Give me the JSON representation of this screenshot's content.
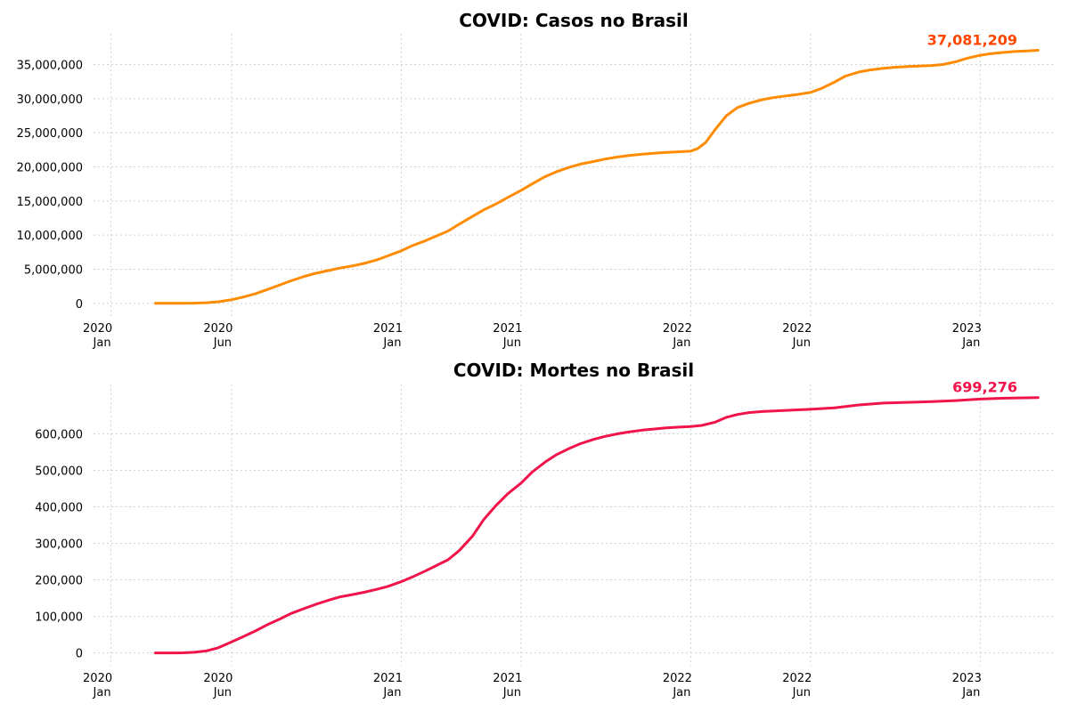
{
  "chart_data": [
    {
      "type": "line",
      "title": "COVID: Casos no Brasil",
      "xlabel": "",
      "ylabel": "",
      "color": "#ff8c00",
      "annotation_color": "#ff4500",
      "annotation": "37,081,209",
      "x_ticks": [
        {
          "date": "2020-01-01",
          "label_line1": "2020",
          "label_line2": "Jan"
        },
        {
          "date": "2020-06-01",
          "label_line1": "2020",
          "label_line2": "Jun"
        },
        {
          "date": "2021-01-01",
          "label_line1": "2021",
          "label_line2": "Jan"
        },
        {
          "date": "2021-06-01",
          "label_line1": "2021",
          "label_line2": "Jun"
        },
        {
          "date": "2022-01-01",
          "label_line1": "2022",
          "label_line2": "Jan"
        },
        {
          "date": "2022-06-01",
          "label_line1": "2022",
          "label_line2": "Jun"
        },
        {
          "date": "2023-01-01",
          "label_line1": "2023",
          "label_line2": "Jan"
        }
      ],
      "y_ticks": [
        {
          "value": 0,
          "label": "0"
        },
        {
          "value": 5000000,
          "label": "5,000,000"
        },
        {
          "value": 10000000,
          "label": "10,000,000"
        },
        {
          "value": 15000000,
          "label": "15,000,000"
        },
        {
          "value": 20000000,
          "label": "20,000,000"
        },
        {
          "value": 25000000,
          "label": "25,000,000"
        },
        {
          "value": 30000000,
          "label": "30,000,000"
        },
        {
          "value": 35000000,
          "label": "35,000,000"
        }
      ],
      "xlim": [
        "2019-12-10",
        "2023-04-05"
      ],
      "ylim": [
        -1850000,
        39500000
      ],
      "grid": true,
      "series": [
        {
          "points": [
            [
              "2020-02-26",
              0
            ],
            [
              "2020-03-20",
              1000
            ],
            [
              "2020-04-15",
              30000
            ],
            [
              "2020-05-01",
              90000
            ],
            [
              "2020-05-15",
              220000
            ],
            [
              "2020-06-01",
              520000
            ],
            [
              "2020-06-15",
              900000
            ],
            [
              "2020-07-01",
              1400000
            ],
            [
              "2020-07-15",
              1970000
            ],
            [
              "2020-08-01",
              2700000
            ],
            [
              "2020-08-15",
              3300000
            ],
            [
              "2020-09-01",
              3950000
            ],
            [
              "2020-09-15",
              4400000
            ],
            [
              "2020-10-01",
              4800000
            ],
            [
              "2020-10-15",
              5150000
            ],
            [
              "2020-11-01",
              5500000
            ],
            [
              "2020-11-15",
              5850000
            ],
            [
              "2020-12-01",
              6350000
            ],
            [
              "2020-12-15",
              6950000
            ],
            [
              "2021-01-01",
              7700000
            ],
            [
              "2021-01-15",
              8450000
            ],
            [
              "2021-02-01",
              9200000
            ],
            [
              "2021-02-15",
              9900000
            ],
            [
              "2021-03-01",
              10600000
            ],
            [
              "2021-03-15",
              11600000
            ],
            [
              "2021-04-01",
              12750000
            ],
            [
              "2021-04-15",
              13700000
            ],
            [
              "2021-05-01",
              14600000
            ],
            [
              "2021-05-15",
              15500000
            ],
            [
              "2021-06-01",
              16550000
            ],
            [
              "2021-06-15",
              17500000
            ],
            [
              "2021-07-01",
              18550000
            ],
            [
              "2021-07-15",
              19250000
            ],
            [
              "2021-08-01",
              19950000
            ],
            [
              "2021-08-15",
              20400000
            ],
            [
              "2021-09-01",
              20800000
            ],
            [
              "2021-09-15",
              21150000
            ],
            [
              "2021-10-01",
              21450000
            ],
            [
              "2021-10-15",
              21650000
            ],
            [
              "2021-11-01",
              21850000
            ],
            [
              "2021-11-15",
              22000000
            ],
            [
              "2021-12-01",
              22120000
            ],
            [
              "2021-12-15",
              22200000
            ],
            [
              "2022-01-01",
              22300000
            ],
            [
              "2022-01-10",
              22700000
            ],
            [
              "2022-01-20",
              23600000
            ],
            [
              "2022-02-01",
              25500000
            ],
            [
              "2022-02-15",
              27500000
            ],
            [
              "2022-03-01",
              28700000
            ],
            [
              "2022-03-15",
              29300000
            ],
            [
              "2022-04-01",
              29850000
            ],
            [
              "2022-04-15",
              30150000
            ],
            [
              "2022-05-01",
              30400000
            ],
            [
              "2022-05-15",
              30600000
            ],
            [
              "2022-06-01",
              30900000
            ],
            [
              "2022-06-15",
              31500000
            ],
            [
              "2022-07-01",
              32400000
            ],
            [
              "2022-07-15",
              33300000
            ],
            [
              "2022-08-01",
              33900000
            ],
            [
              "2022-08-15",
              34200000
            ],
            [
              "2022-09-01",
              34450000
            ],
            [
              "2022-09-15",
              34600000
            ],
            [
              "2022-10-01",
              34700000
            ],
            [
              "2022-10-15",
              34780000
            ],
            [
              "2022-11-01",
              34850000
            ],
            [
              "2022-11-15",
              35000000
            ],
            [
              "2022-12-01",
              35400000
            ],
            [
              "2022-12-15",
              35900000
            ],
            [
              "2023-01-01",
              36350000
            ],
            [
              "2023-01-15",
              36600000
            ],
            [
              "2023-02-01",
              36800000
            ],
            [
              "2023-02-15",
              36920000
            ],
            [
              "2023-03-01",
              37000000
            ],
            [
              "2023-03-15",
              37081209
            ]
          ]
        }
      ]
    },
    {
      "type": "line",
      "title": "COVID: Mortes no Brasil",
      "xlabel": "",
      "ylabel": "",
      "color": "#f0144b",
      "annotation_color": "#f0144b",
      "annotation": "699,276",
      "x_ticks": [
        {
          "date": "2020-01-01",
          "label_line1": "2020",
          "label_line2": "Jan"
        },
        {
          "date": "2020-06-01",
          "label_line1": "2020",
          "label_line2": "Jun"
        },
        {
          "date": "2021-01-01",
          "label_line1": "2021",
          "label_line2": "Jan"
        },
        {
          "date": "2021-06-01",
          "label_line1": "2021",
          "label_line2": "Jun"
        },
        {
          "date": "2022-01-01",
          "label_line1": "2022",
          "label_line2": "Jan"
        },
        {
          "date": "2022-06-01",
          "label_line1": "2022",
          "label_line2": "Jun"
        },
        {
          "date": "2023-01-01",
          "label_line1": "2023",
          "label_line2": "Jan"
        }
      ],
      "y_ticks": [
        {
          "value": 0,
          "label": "0"
        },
        {
          "value": 100000,
          "label": "100,000"
        },
        {
          "value": 200000,
          "label": "200,000"
        },
        {
          "value": 300000,
          "label": "300,000"
        },
        {
          "value": 400000,
          "label": "400,000"
        },
        {
          "value": 500000,
          "label": "500,000"
        },
        {
          "value": 600000,
          "label": "600,000"
        }
      ],
      "xlim": [
        "2019-12-10",
        "2023-04-05"
      ],
      "ylim": [
        -35000,
        735000
      ],
      "grid": true,
      "series": [
        {
          "points": [
            [
              "2020-02-26",
              0
            ],
            [
              "2020-03-20",
              20
            ],
            [
              "2020-04-01",
              300
            ],
            [
              "2020-04-15",
              1700
            ],
            [
              "2020-05-01",
              6000
            ],
            [
              "2020-05-15",
              14000
            ],
            [
              "2020-06-01",
              30000
            ],
            [
              "2020-06-15",
              44000
            ],
            [
              "2020-07-01",
              60000
            ],
            [
              "2020-07-15",
              76000
            ],
            [
              "2020-08-01",
              93000
            ],
            [
              "2020-08-15",
              108000
            ],
            [
              "2020-09-01",
              122000
            ],
            [
              "2020-09-15",
              133000
            ],
            [
              "2020-10-01",
              144000
            ],
            [
              "2020-10-15",
              153000
            ],
            [
              "2020-11-01",
              160000
            ],
            [
              "2020-11-15",
              166000
            ],
            [
              "2020-12-01",
              174000
            ],
            [
              "2020-12-15",
              182000
            ],
            [
              "2021-01-01",
              195000
            ],
            [
              "2021-01-15",
              208000
            ],
            [
              "2021-02-01",
              225000
            ],
            [
              "2021-02-15",
              240000
            ],
            [
              "2021-03-01",
              255000
            ],
            [
              "2021-03-15",
              280000
            ],
            [
              "2021-04-01",
              320000
            ],
            [
              "2021-04-15",
              365000
            ],
            [
              "2021-05-01",
              405000
            ],
            [
              "2021-05-15",
              435000
            ],
            [
              "2021-06-01",
              465000
            ],
            [
              "2021-06-15",
              495000
            ],
            [
              "2021-07-01",
              522000
            ],
            [
              "2021-07-15",
              542000
            ],
            [
              "2021-08-01",
              560000
            ],
            [
              "2021-08-15",
              573000
            ],
            [
              "2021-09-01",
              585000
            ],
            [
              "2021-09-15",
              593000
            ],
            [
              "2021-10-01",
              600000
            ],
            [
              "2021-10-15",
              605000
            ],
            [
              "2021-11-01",
              610000
            ],
            [
              "2021-11-15",
              613000
            ],
            [
              "2021-12-01",
              616000
            ],
            [
              "2021-12-15",
              618000
            ],
            [
              "2022-01-01",
              620000
            ],
            [
              "2022-01-15",
              623000
            ],
            [
              "2022-02-01",
              632000
            ],
            [
              "2022-02-15",
              645000
            ],
            [
              "2022-03-01",
              653000
            ],
            [
              "2022-03-15",
              658000
            ],
            [
              "2022-04-01",
              661000
            ],
            [
              "2022-05-01",
              664000
            ],
            [
              "2022-06-01",
              667000
            ],
            [
              "2022-07-01",
              671000
            ],
            [
              "2022-08-01",
              679000
            ],
            [
              "2022-09-01",
              684000
            ],
            [
              "2022-10-01",
              686000
            ],
            [
              "2022-11-01",
              688000
            ],
            [
              "2022-12-01",
              691000
            ],
            [
              "2023-01-01",
              695000
            ],
            [
              "2023-02-01",
              697500
            ],
            [
              "2023-03-15",
              699276
            ]
          ]
        }
      ]
    }
  ]
}
